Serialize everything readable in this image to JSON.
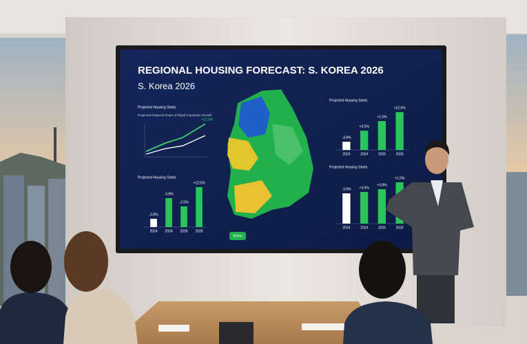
{
  "screen": {
    "title": "REGIONAL HOUSING FORECAST: S. KOREA 2026",
    "subtitle": "S. Korea 2026",
    "map_label": "Korea",
    "panels": [
      {
        "title": "Projected Housing Starts",
        "subtitle": "Projected Regional Share of Rapid Population Growth",
        "labels": [
          "+12.5%"
        ]
      },
      {
        "title": "Projected Housing Starts",
        "labels": [
          "-3.8%",
          "-3.8%",
          "-2.5%",
          "+12.5%"
        ],
        "years": [
          "2024",
          "2024",
          "2026",
          "2026"
        ]
      },
      {
        "title": "Projected Housing Starts",
        "labels": [
          "-3.8%",
          "+3.5%",
          "+1.5%",
          "+12.5%"
        ],
        "years": [
          "2024",
          "2024",
          "2026",
          "2026"
        ]
      },
      {
        "title": "Projected Housing Starts",
        "labels": [
          "-3.8%",
          "+3.6%",
          "+3.8%",
          "+1.5%"
        ],
        "years": [
          "2024",
          "2024",
          "2026",
          "2026"
        ]
      }
    ]
  }
}
